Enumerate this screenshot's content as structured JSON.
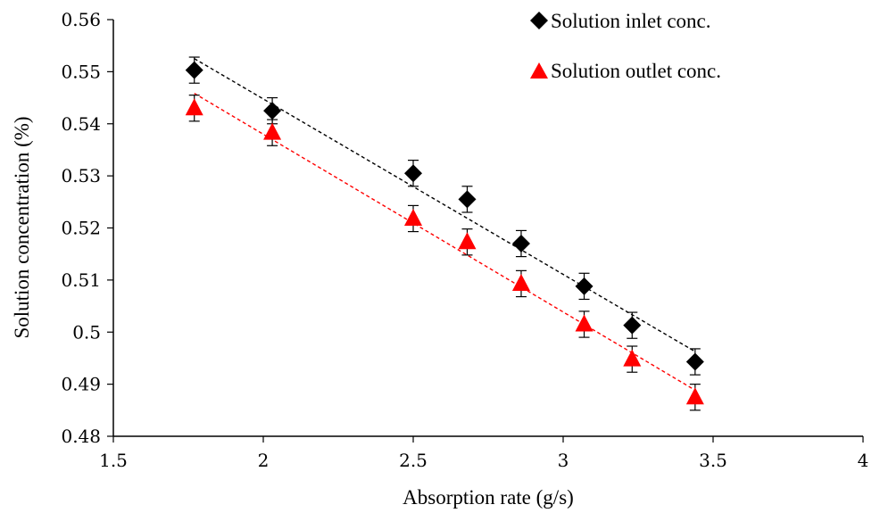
{
  "chart_data": {
    "type": "scatter",
    "title": "",
    "xlabel": "Absorption rate (g/s)",
    "ylabel": "Solution concentration (%)",
    "xlim": [
      1.5,
      4
    ],
    "ylim": [
      0.48,
      0.56
    ],
    "x_ticks": [
      "1.5",
      "2",
      "2.5",
      "3",
      "3.5",
      "4"
    ],
    "y_ticks": [
      "0.48",
      "0.49",
      "0.5",
      "0.51",
      "0.52",
      "0.53",
      "0.54",
      "0.55",
      "0.56"
    ],
    "grid": false,
    "legend_position": "top-right",
    "error_bar": 0.0025,
    "series": [
      {
        "name": "Solution inlet conc.",
        "marker": "diamond",
        "color": "#000000",
        "trendline": "linear-dashed",
        "x": [
          1.77,
          2.03,
          2.5,
          2.68,
          2.86,
          3.07,
          3.23,
          3.44
        ],
        "y": [
          0.5503,
          0.5425,
          0.5305,
          0.5255,
          0.517,
          0.5088,
          0.5013,
          0.4943
        ]
      },
      {
        "name": "Solution outlet conc.",
        "marker": "triangle",
        "color": "#ff0000",
        "trendline": "linear-dashed",
        "x": [
          1.77,
          2.03,
          2.5,
          2.68,
          2.86,
          3.07,
          3.23,
          3.44
        ],
        "y": [
          0.543,
          0.5383,
          0.5218,
          0.5173,
          0.5093,
          0.5015,
          0.4948,
          0.4875
        ]
      }
    ]
  }
}
